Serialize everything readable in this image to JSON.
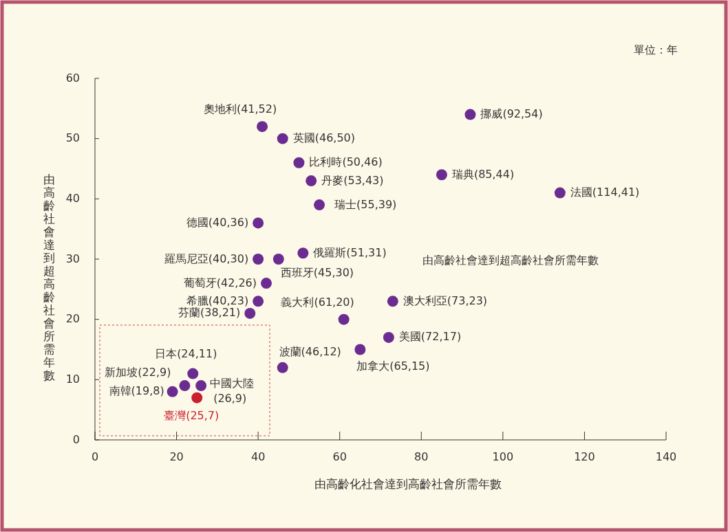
{
  "chart_data": {
    "type": "scatter",
    "xlabel": "由高齡化社會達到高齡社會所需年數",
    "ylabel": "由高齡社會達到超高齡社會所需年數",
    "xlim": [
      0,
      140
    ],
    "ylim": [
      0,
      60
    ],
    "xticks": [
      0,
      20,
      40,
      60,
      80,
      100,
      120,
      140
    ],
    "yticks": [
      0,
      10,
      20,
      30,
      40,
      50,
      60
    ],
    "grid": false,
    "marker": "circle",
    "data_labels": true,
    "annotations": [
      "單位：年",
      "由高齡社會達到超高齡社會所需年數"
    ],
    "series": [
      {
        "color": "#6a2c91",
        "x": [
          41,
          46,
          50,
          53,
          55,
          40,
          40,
          45,
          51,
          42,
          40,
          38,
          61,
          73,
          72,
          65,
          46,
          24,
          22,
          26,
          19,
          92,
          85,
          114
        ],
        "values": [
          52,
          50,
          46,
          43,
          39,
          36,
          30,
          30,
          31,
          26,
          23,
          21,
          20,
          23,
          17,
          15,
          12,
          11,
          9,
          9,
          8,
          54,
          44,
          41
        ],
        "value_labels": [
          "奧地利(41,52)",
          "英國(46,50)",
          "比利時(50,46)",
          "丹麥(53,43)",
          "瑞士(55,39)",
          "德國(40,36)",
          "羅馬尼亞(40,30)",
          "西班牙(45,30)",
          "俄羅斯(51,31)",
          "葡萄牙(42,26)",
          "希臘(40,23)",
          "芬蘭(38,21)",
          "義大利(61,20)",
          "澳大利亞(73,23)",
          "美國(72,17)",
          "加拿大(65,15)",
          "波蘭(46,12)",
          "日本(24,11)",
          "新加坡(22,9)",
          "中國大陸(26,9)",
          "南韓(19,8)",
          "挪威(92,54)",
          "瑞典(85,44)",
          "法國(114,41)"
        ]
      },
      {
        "color": "#c8202f",
        "x": [
          25
        ],
        "values": [
          7
        ],
        "value_labels": [
          "臺灣(25,7)"
        ]
      }
    ]
  }
}
